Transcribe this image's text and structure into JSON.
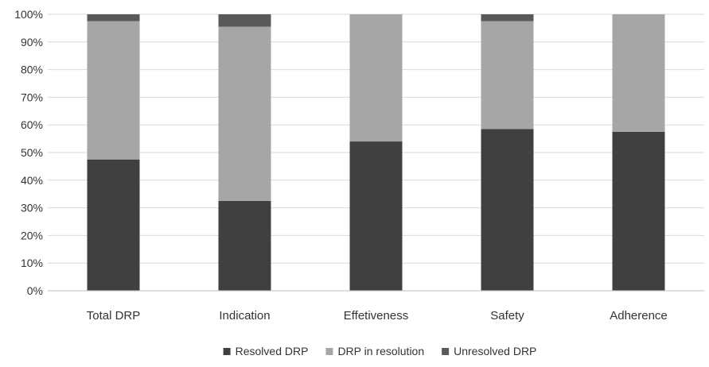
{
  "chart_data": {
    "type": "bar",
    "stacked": true,
    "categories": [
      "Total DRP",
      "Indication",
      "Effetiveness",
      "Safety",
      "Adherence"
    ],
    "series": [
      {
        "name": "Resolved DRP",
        "color": "#404040",
        "values": [
          47.5,
          32.5,
          54.0,
          58.5,
          57.5
        ]
      },
      {
        "name": "DRP in resolution",
        "color": "#a6a6a6",
        "values": [
          50.0,
          63.0,
          46.0,
          39.0,
          42.5
        ]
      },
      {
        "name": "Unresolved DRP",
        "color": "#595959",
        "values": [
          2.5,
          4.5,
          0.0,
          2.5,
          0.0
        ]
      }
    ],
    "y_ticks": [
      "0%",
      "10%",
      "20%",
      "30%",
      "40%",
      "50%",
      "60%",
      "70%",
      "80%",
      "90%",
      "100%"
    ],
    "ylim": [
      0,
      100
    ],
    "grid": true,
    "legend_position": "bottom",
    "title": "",
    "xlabel": "",
    "ylabel": ""
  }
}
